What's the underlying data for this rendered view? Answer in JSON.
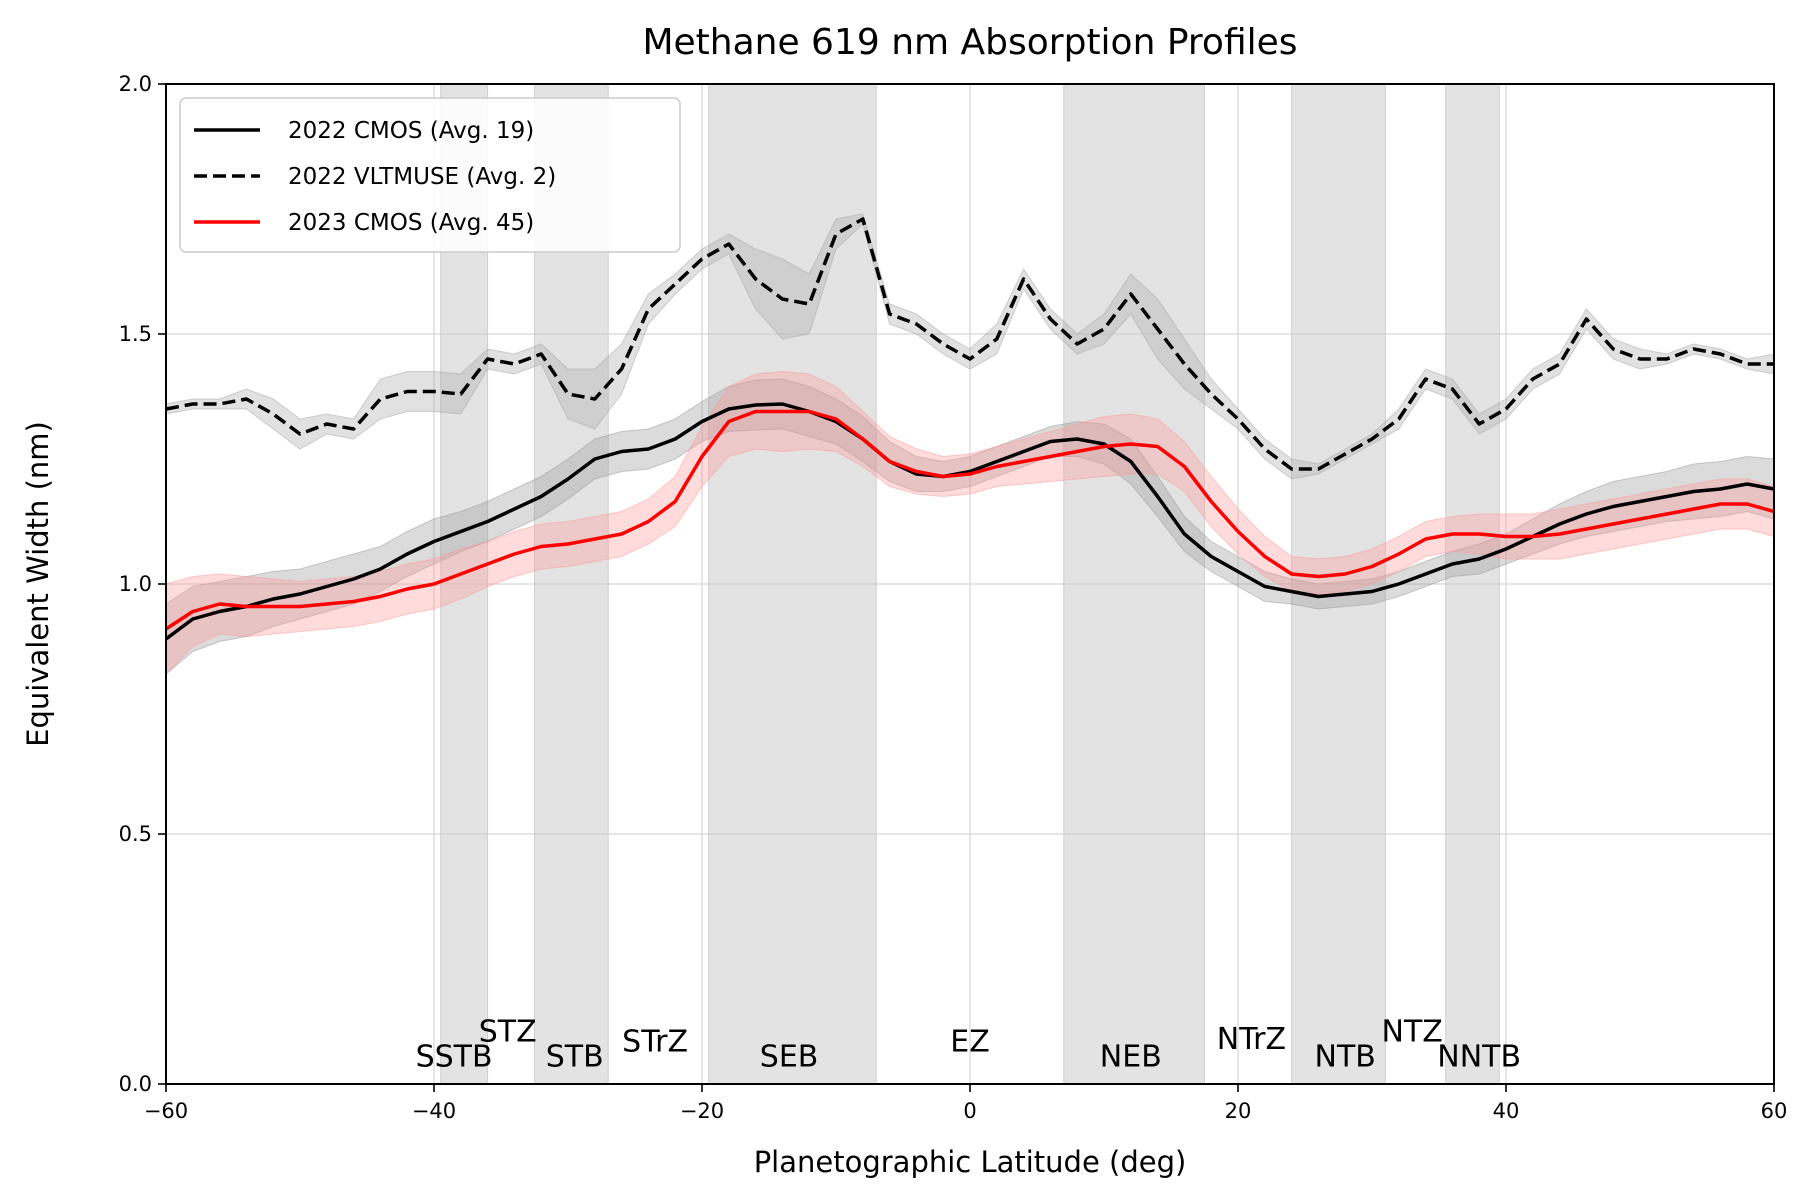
{
  "chart_data": {
    "type": "line",
    "title": "Methane 619 nm Absorption Profiles",
    "xlabel": "Planetographic Latitude (deg)",
    "ylabel": "Equivalent Width (nm)",
    "xlim": [
      -60,
      60
    ],
    "ylim": [
      0,
      2
    ],
    "xticks": [
      -60,
      -40,
      -20,
      0,
      20,
      40,
      60
    ],
    "xtick_labels": [
      "−60",
      "−40",
      "−20",
      "0",
      "20",
      "40",
      "60"
    ],
    "yticks": [
      0,
      0.5,
      1.0,
      1.5,
      2.0
    ],
    "ytick_labels": [
      "0.0",
      "0.5",
      "1.0",
      "1.5",
      "2.0"
    ],
    "grid": true,
    "legend_position": "top-left",
    "shaded_bands": [
      [
        -39.5,
        -36.0
      ],
      [
        -32.5,
        -27.0
      ],
      [
        -19.5,
        -7.0
      ],
      [
        7.0,
        17.5
      ],
      [
        24.0,
        31.0
      ],
      [
        35.5,
        39.5
      ]
    ],
    "band_color": "#e3e3e3",
    "region_labels": [
      {
        "text": "SSTB",
        "lat": -38.5,
        "y": 0.035
      },
      {
        "text": "STZ",
        "lat": -34.5,
        "y": 0.085
      },
      {
        "text": "STB",
        "lat": -29.5,
        "y": 0.035
      },
      {
        "text": "STrZ",
        "lat": -23.5,
        "y": 0.065
      },
      {
        "text": "SEB",
        "lat": -13.5,
        "y": 0.035
      },
      {
        "text": "EZ",
        "lat": 0.0,
        "y": 0.065
      },
      {
        "text": "NEB",
        "lat": 12.0,
        "y": 0.035
      },
      {
        "text": "NTrZ",
        "lat": 21.0,
        "y": 0.07
      },
      {
        "text": "NTB",
        "lat": 28.0,
        "y": 0.035
      },
      {
        "text": "NTZ",
        "lat": 33.0,
        "y": 0.085
      },
      {
        "text": "NNTB",
        "lat": 38.0,
        "y": 0.035
      }
    ],
    "series": [
      {
        "name": "2022 CMOS (Avg. 19)",
        "color": "#000000",
        "style": "solid",
        "band_color": "#999999",
        "x": [
          -60,
          -58,
          -56,
          -54,
          -52,
          -50,
          -48,
          -46,
          -44,
          -42,
          -40,
          -38,
          -36,
          -34,
          -32,
          -30,
          -28,
          -26,
          -24,
          -22,
          -20,
          -18,
          -16,
          -14,
          -12,
          -10,
          -8,
          -6,
          -4,
          -2,
          0,
          2,
          4,
          6,
          8,
          10,
          12,
          14,
          16,
          18,
          20,
          22,
          24,
          26,
          28,
          30,
          32,
          34,
          36,
          38,
          40,
          42,
          44,
          46,
          48,
          50,
          52,
          54,
          56,
          58,
          60
        ],
        "y": [
          0.89,
          0.93,
          0.945,
          0.955,
          0.97,
          0.98,
          0.995,
          1.01,
          1.03,
          1.06,
          1.085,
          1.105,
          1.125,
          1.15,
          1.175,
          1.21,
          1.25,
          1.265,
          1.27,
          1.29,
          1.325,
          1.35,
          1.358,
          1.36,
          1.345,
          1.325,
          1.29,
          1.245,
          1.22,
          1.215,
          1.225,
          1.245,
          1.265,
          1.285,
          1.29,
          1.28,
          1.245,
          1.175,
          1.1,
          1.055,
          1.025,
          0.995,
          0.985,
          0.975,
          0.98,
          0.985,
          1.0,
          1.02,
          1.04,
          1.05,
          1.07,
          1.095,
          1.12,
          1.14,
          1.155,
          1.165,
          1.175,
          1.185,
          1.19,
          1.2,
          1.19
        ],
        "band_halfwidth": [
          0.07,
          0.065,
          0.06,
          0.06,
          0.055,
          0.05,
          0.05,
          0.05,
          0.045,
          0.045,
          0.045,
          0.04,
          0.04,
          0.04,
          0.04,
          0.04,
          0.04,
          0.04,
          0.04,
          0.04,
          0.04,
          0.045,
          0.05,
          0.05,
          0.05,
          0.045,
          0.045,
          0.04,
          0.035,
          0.03,
          0.03,
          0.03,
          0.03,
          0.03,
          0.035,
          0.04,
          0.045,
          0.04,
          0.035,
          0.03,
          0.03,
          0.03,
          0.025,
          0.025,
          0.025,
          0.025,
          0.025,
          0.025,
          0.025,
          0.03,
          0.03,
          0.035,
          0.04,
          0.045,
          0.05,
          0.05,
          0.05,
          0.055,
          0.055,
          0.055,
          0.06
        ]
      },
      {
        "name": "2022 VLTMUSE (Avg. 2)",
        "color": "#000000",
        "style": "dashed",
        "band_color": "#a8a8a8",
        "x": [
          -60,
          -58,
          -56,
          -54,
          -52,
          -50,
          -48,
          -46,
          -44,
          -42,
          -40,
          -38,
          -36,
          -34,
          -32,
          -30,
          -28,
          -26,
          -24,
          -22,
          -20,
          -18,
          -16,
          -14,
          -12,
          -10,
          -8,
          -6,
          -4,
          -2,
          0,
          2,
          4,
          6,
          8,
          10,
          12,
          14,
          16,
          18,
          20,
          22,
          24,
          26,
          28,
          30,
          32,
          34,
          36,
          38,
          40,
          42,
          44,
          46,
          48,
          50,
          52,
          54,
          56,
          58,
          60
        ],
        "y": [
          1.35,
          1.36,
          1.36,
          1.37,
          1.34,
          1.3,
          1.32,
          1.31,
          1.37,
          1.385,
          1.385,
          1.38,
          1.45,
          1.44,
          1.46,
          1.38,
          1.37,
          1.43,
          1.55,
          1.6,
          1.65,
          1.68,
          1.61,
          1.57,
          1.56,
          1.7,
          1.73,
          1.54,
          1.52,
          1.48,
          1.45,
          1.49,
          1.61,
          1.53,
          1.48,
          1.51,
          1.58,
          1.51,
          1.44,
          1.38,
          1.33,
          1.27,
          1.23,
          1.23,
          1.26,
          1.29,
          1.33,
          1.41,
          1.39,
          1.32,
          1.35,
          1.41,
          1.44,
          1.53,
          1.47,
          1.45,
          1.45,
          1.47,
          1.46,
          1.44,
          1.44
        ],
        "band_halfwidth": [
          0.01,
          0.01,
          0.01,
          0.02,
          0.03,
          0.03,
          0.02,
          0.02,
          0.04,
          0.04,
          0.04,
          0.04,
          0.02,
          0.02,
          0.02,
          0.05,
          0.06,
          0.05,
          0.03,
          0.02,
          0.02,
          0.02,
          0.06,
          0.08,
          0.06,
          0.03,
          0.01,
          0.02,
          0.02,
          0.02,
          0.02,
          0.03,
          0.02,
          0.02,
          0.02,
          0.03,
          0.04,
          0.06,
          0.05,
          0.03,
          0.02,
          0.02,
          0.02,
          0.01,
          0.01,
          0.01,
          0.02,
          0.02,
          0.02,
          0.02,
          0.02,
          0.02,
          0.02,
          0.02,
          0.02,
          0.02,
          0.01,
          0.01,
          0.01,
          0.01,
          0.02
        ]
      },
      {
        "name": "2023 CMOS (Avg. 45)",
        "color": "#ff0000",
        "style": "solid",
        "band_color": "#ff9999",
        "x": [
          -60,
          -58,
          -56,
          -54,
          -52,
          -50,
          -48,
          -46,
          -44,
          -42,
          -40,
          -38,
          -36,
          -34,
          -32,
          -30,
          -28,
          -26,
          -24,
          -22,
          -20,
          -18,
          -16,
          -14,
          -12,
          -10,
          -8,
          -6,
          -4,
          -2,
          0,
          2,
          4,
          6,
          8,
          10,
          12,
          14,
          16,
          18,
          20,
          22,
          24,
          26,
          28,
          30,
          32,
          34,
          36,
          38,
          40,
          42,
          44,
          46,
          48,
          50,
          52,
          54,
          56,
          58,
          60
        ],
        "y": [
          0.91,
          0.945,
          0.96,
          0.955,
          0.955,
          0.955,
          0.96,
          0.965,
          0.975,
          0.99,
          1.0,
          1.02,
          1.04,
          1.06,
          1.075,
          1.08,
          1.09,
          1.1,
          1.125,
          1.165,
          1.255,
          1.325,
          1.345,
          1.345,
          1.345,
          1.33,
          1.29,
          1.245,
          1.225,
          1.215,
          1.22,
          1.235,
          1.245,
          1.255,
          1.265,
          1.275,
          1.28,
          1.275,
          1.235,
          1.165,
          1.105,
          1.055,
          1.02,
          1.015,
          1.02,
          1.035,
          1.06,
          1.09,
          1.1,
          1.1,
          1.095,
          1.095,
          1.1,
          1.11,
          1.12,
          1.13,
          1.14,
          1.15,
          1.16,
          1.16,
          1.145
        ],
        "band_halfwidth": [
          0.09,
          0.07,
          0.06,
          0.06,
          0.055,
          0.05,
          0.05,
          0.05,
          0.05,
          0.05,
          0.05,
          0.05,
          0.045,
          0.045,
          0.045,
          0.045,
          0.045,
          0.045,
          0.045,
          0.05,
          0.06,
          0.07,
          0.075,
          0.08,
          0.075,
          0.065,
          0.055,
          0.05,
          0.045,
          0.04,
          0.04,
          0.04,
          0.045,
          0.05,
          0.055,
          0.06,
          0.06,
          0.055,
          0.05,
          0.05,
          0.045,
          0.04,
          0.035,
          0.035,
          0.035,
          0.035,
          0.035,
          0.035,
          0.035,
          0.04,
          0.045,
          0.045,
          0.05,
          0.05,
          0.05,
          0.05,
          0.05,
          0.05,
          0.05,
          0.05,
          0.05
        ]
      }
    ]
  }
}
